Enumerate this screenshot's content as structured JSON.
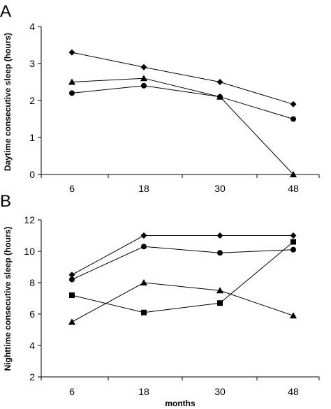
{
  "chart_data": [
    {
      "type": "line",
      "panel_label": "A",
      "ylabel": "Daytime consecutive sleep (hours)",
      "xlabel": "",
      "categories": [
        "6",
        "18",
        "30",
        "48"
      ],
      "ylim": [
        0,
        4
      ],
      "yticks": [
        "0",
        "1",
        "2",
        "3",
        "4"
      ],
      "grid": false,
      "legend": "none",
      "series": [
        {
          "marker": "diamond",
          "values": [
            3.3,
            2.9,
            2.5,
            1.9
          ]
        },
        {
          "marker": "triangle",
          "values": [
            2.5,
            2.6,
            2.1,
            0.0
          ]
        },
        {
          "marker": "circle",
          "values": [
            2.2,
            2.4,
            2.1,
            1.5
          ]
        }
      ]
    },
    {
      "type": "line",
      "panel_label": "B",
      "ylabel": "Nighttime consecutive sleep (hours)",
      "xlabel": "months",
      "categories": [
        "6",
        "18",
        "30",
        "48"
      ],
      "ylim": [
        2,
        12
      ],
      "yticks": [
        "2",
        "4",
        "6",
        "8",
        "10",
        "12"
      ],
      "grid": false,
      "legend": "none",
      "series": [
        {
          "marker": "diamond",
          "values": [
            8.5,
            11.0,
            11.0,
            11.0
          ]
        },
        {
          "marker": "circle",
          "values": [
            8.2,
            10.3,
            9.9,
            10.1
          ]
        },
        {
          "marker": "square",
          "values": [
            7.2,
            6.1,
            6.7,
            10.6
          ]
        },
        {
          "marker": "triangle",
          "values": [
            5.5,
            8.0,
            7.5,
            5.9
          ]
        }
      ]
    }
  ]
}
